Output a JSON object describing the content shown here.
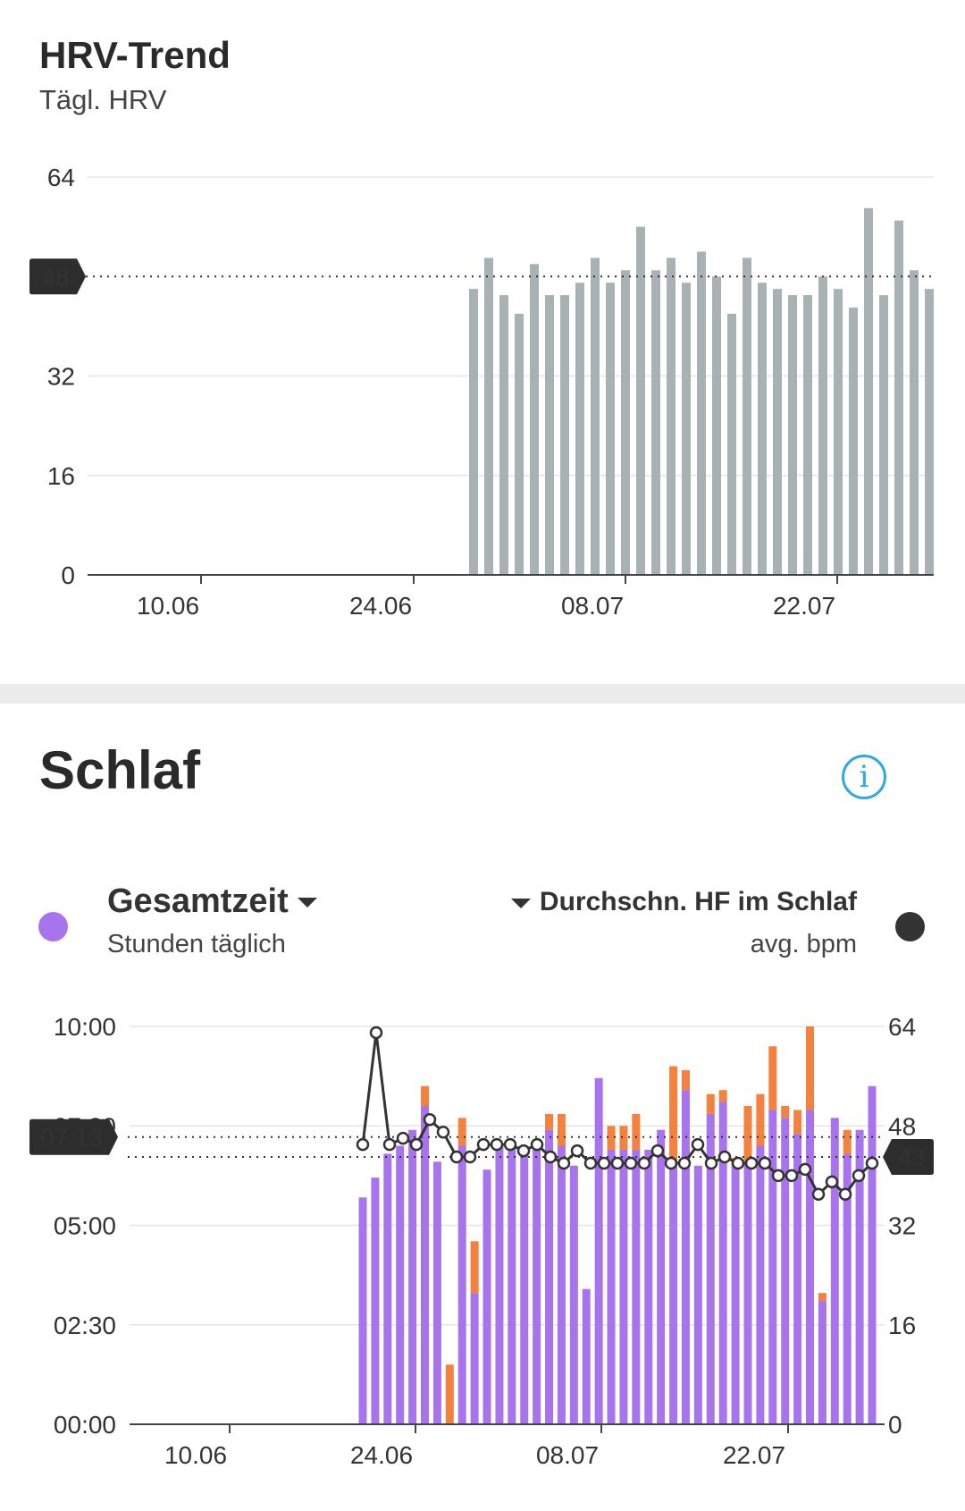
{
  "hrv": {
    "title": "HRV-Trend",
    "subtitle": "Tägl. HRV",
    "reference_badge": "48",
    "bar_color": "#a8b1b4"
  },
  "sleep": {
    "title": "Schlaf",
    "info_icon": "info-icon",
    "left_metric_label": "Gesamtzeit",
    "left_metric_sub": "Stunden täglich",
    "right_metric_label": "Durchschn. HF im Schlaf",
    "right_metric_sub": "avg. bpm",
    "left_badge": "07:13",
    "right_badge": "43",
    "colors": {
      "sleep": "#a874ee",
      "awake": "#f5813f",
      "hr_line": "#333333",
      "info": "#2eaadc"
    }
  },
  "chart_data": [
    {
      "type": "bar",
      "title": "HRV-Trend",
      "subtitle": "Tägl. HRV",
      "x_tick_labels": [
        "10.06",
        "24.06",
        "08.07",
        "22.07"
      ],
      "y_ticks": [
        0,
        16,
        32,
        64
      ],
      "ylim": [
        0,
        64
      ],
      "reference_line": 48,
      "grid": true,
      "series": [
        {
          "values": [
            46,
            51,
            45,
            42,
            50,
            45,
            45,
            47,
            51,
            47,
            49,
            56,
            49,
            51,
            47,
            52,
            48,
            42,
            51,
            47,
            46,
            45,
            45,
            48,
            46,
            43,
            59,
            45,
            57,
            49,
            46
          ]
        }
      ]
    },
    {
      "type": "bar",
      "title": "Schlaf",
      "x_tick_labels": [
        "10.06",
        "24.06",
        "08.07",
        "22.07"
      ],
      "y_left_ticks": [
        "00:00",
        "02:30",
        "05:00",
        "07:30",
        "10:00"
      ],
      "y_right_ticks": [
        0,
        16,
        32,
        48,
        64
      ],
      "ylim_hours": [
        0,
        10
      ],
      "ylim_bpm": [
        0,
        64
      ],
      "reference_hours": 7.22,
      "reference_bpm": 43,
      "grid": true,
      "series": [
        {
          "name": "Gesamtzeit",
          "unit": "hours",
          "sleep_hours": [
            5.7,
            6.2,
            6.8,
            7.0,
            7.4,
            8.0,
            6.6,
            0,
            7.0,
            3.3,
            6.4,
            7.0,
            7.0,
            7.0,
            7.0,
            7.4,
            7.0,
            6.5,
            3.4,
            8.7,
            6.9,
            6.9,
            6.9,
            6.9,
            7.4,
            6.5,
            8.4,
            6.5,
            7.8,
            8.1,
            6.5,
            6.6,
            7.0,
            7.9,
            7.7,
            7.3,
            7.9,
            3.1,
            7.7,
            6.8,
            7.4,
            8.5
          ],
          "awake_hours": [
            0,
            0,
            0,
            0,
            0,
            0.5,
            0,
            1.5,
            0.7,
            1.3,
            0,
            0,
            0,
            0,
            0,
            0.4,
            0.8,
            0,
            0,
            0,
            0.6,
            0.6,
            0.9,
            0,
            0,
            2.5,
            0.5,
            0,
            0.5,
            0.3,
            0.2,
            1.4,
            1.3,
            1.6,
            0.3,
            0.6,
            2.1,
            0.2,
            0,
            0.6,
            0,
            0
          ]
        },
        {
          "name": "Durchschn. HF im Schlaf",
          "unit": "bpm",
          "x_start_index": 0,
          "values": [
            45,
            63,
            45,
            46,
            45,
            49,
            47,
            43,
            43,
            45,
            45,
            45,
            44,
            45,
            43,
            42,
            44,
            42,
            42,
            42,
            42,
            42,
            44,
            42,
            42,
            45,
            42,
            43,
            42,
            42,
            42,
            40,
            40,
            41,
            37,
            39,
            37,
            40,
            42
          ]
        }
      ]
    }
  ]
}
